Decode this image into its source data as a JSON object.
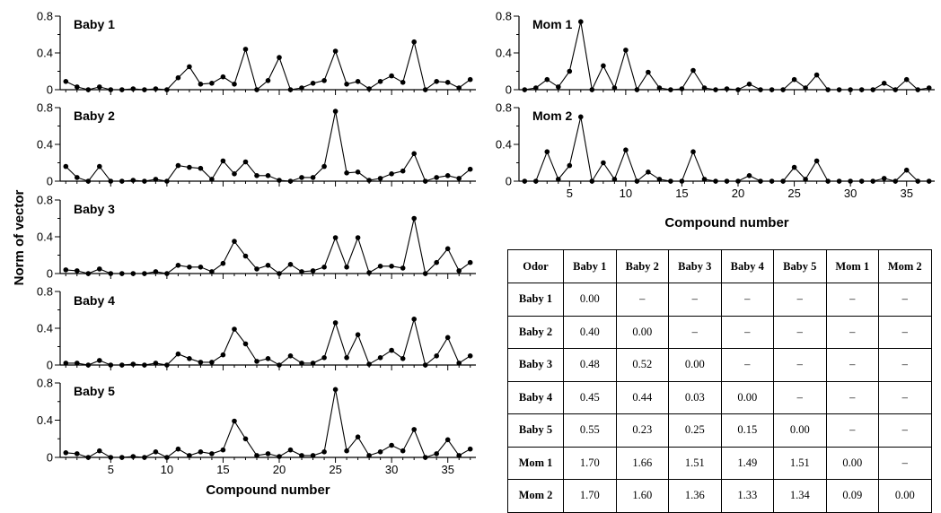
{
  "chart_data": [
    {
      "type": "line",
      "panel_label": "Baby 1",
      "ylim": [
        0,
        0.8
      ],
      "yticks": [
        "0",
        "0.4",
        "0.8"
      ],
      "x": [
        1,
        2,
        3,
        4,
        5,
        6,
        7,
        8,
        9,
        10,
        11,
        12,
        13,
        14,
        15,
        16,
        17,
        18,
        19,
        20,
        21,
        22,
        23,
        24,
        25,
        26,
        27,
        28,
        29,
        30,
        31,
        32,
        33,
        34,
        35,
        36,
        37
      ],
      "values": [
        0.09,
        0.03,
        0.0,
        0.03,
        0.0,
        0.0,
        0.01,
        0.0,
        0.01,
        0.0,
        0.13,
        0.25,
        0.06,
        0.07,
        0.14,
        0.06,
        0.44,
        0.0,
        0.1,
        0.35,
        0.0,
        0.02,
        0.07,
        0.1,
        0.42,
        0.06,
        0.09,
        0.01,
        0.09,
        0.15,
        0.08,
        0.52,
        0.0,
        0.09,
        0.08,
        0.02,
        0.11
      ]
    },
    {
      "type": "line",
      "panel_label": "Baby 2",
      "ylim": [
        0,
        0.8
      ],
      "yticks": [
        "0",
        "0.4",
        "0.8"
      ],
      "x": [
        1,
        2,
        3,
        4,
        5,
        6,
        7,
        8,
        9,
        10,
        11,
        12,
        13,
        14,
        15,
        16,
        17,
        18,
        19,
        20,
        21,
        22,
        23,
        24,
        25,
        26,
        27,
        28,
        29,
        30,
        31,
        32,
        33,
        34,
        35,
        36,
        37
      ],
      "values": [
        0.16,
        0.04,
        0.0,
        0.16,
        0.0,
        0.0,
        0.01,
        0.0,
        0.02,
        0.0,
        0.17,
        0.15,
        0.14,
        0.02,
        0.22,
        0.08,
        0.21,
        0.06,
        0.06,
        0.01,
        0.0,
        0.04,
        0.04,
        0.16,
        0.76,
        0.09,
        0.1,
        0.01,
        0.03,
        0.08,
        0.11,
        0.3,
        0.0,
        0.04,
        0.06,
        0.03,
        0.13
      ]
    },
    {
      "type": "line",
      "panel_label": "Baby 3",
      "ylim": [
        0,
        0.8
      ],
      "yticks": [
        "0",
        "0.4",
        "0.8"
      ],
      "x": [
        1,
        2,
        3,
        4,
        5,
        6,
        7,
        8,
        9,
        10,
        11,
        12,
        13,
        14,
        15,
        16,
        17,
        18,
        19,
        20,
        21,
        22,
        23,
        24,
        25,
        26,
        27,
        28,
        29,
        30,
        31,
        32,
        33,
        34,
        35,
        36,
        37
      ],
      "values": [
        0.04,
        0.03,
        0.0,
        0.05,
        0.0,
        0.0,
        0.0,
        0.0,
        0.02,
        0.0,
        0.09,
        0.07,
        0.07,
        0.02,
        0.11,
        0.35,
        0.19,
        0.05,
        0.09,
        0.0,
        0.1,
        0.02,
        0.03,
        0.07,
        0.39,
        0.07,
        0.39,
        0.01,
        0.08,
        0.08,
        0.06,
        0.6,
        0.0,
        0.12,
        0.27,
        0.03,
        0.12
      ]
    },
    {
      "type": "line",
      "panel_label": "Baby 4",
      "ylim": [
        0,
        0.8
      ],
      "yticks": [
        "0",
        "0.4",
        "0.8"
      ],
      "x": [
        1,
        2,
        3,
        4,
        5,
        6,
        7,
        8,
        9,
        10,
        11,
        12,
        13,
        14,
        15,
        16,
        17,
        18,
        19,
        20,
        21,
        22,
        23,
        24,
        25,
        26,
        27,
        28,
        29,
        30,
        31,
        32,
        33,
        34,
        35,
        36,
        37
      ],
      "values": [
        0.02,
        0.02,
        0.0,
        0.05,
        0.0,
        0.0,
        0.01,
        0.0,
        0.02,
        0.0,
        0.12,
        0.07,
        0.03,
        0.03,
        0.11,
        0.39,
        0.23,
        0.04,
        0.07,
        0.0,
        0.1,
        0.02,
        0.02,
        0.08,
        0.46,
        0.08,
        0.33,
        0.01,
        0.08,
        0.16,
        0.07,
        0.5,
        0.0,
        0.1,
        0.3,
        0.02,
        0.1
      ]
    },
    {
      "type": "line",
      "panel_label": "Baby 5",
      "ylim": [
        0,
        0.8
      ],
      "yticks": [
        "0",
        "0.4",
        "0.8"
      ],
      "xticks": [
        "5",
        "10",
        "15",
        "20",
        "25",
        "30",
        "35"
      ],
      "xlabel": "Compound  number",
      "x": [
        1,
        2,
        3,
        4,
        5,
        6,
        7,
        8,
        9,
        10,
        11,
        12,
        13,
        14,
        15,
        16,
        17,
        18,
        19,
        20,
        21,
        22,
        23,
        24,
        25,
        26,
        27,
        28,
        29,
        30,
        31,
        32,
        33,
        34,
        35,
        36,
        37
      ],
      "values": [
        0.05,
        0.04,
        0.0,
        0.07,
        0.0,
        0.0,
        0.01,
        0.0,
        0.06,
        0.0,
        0.09,
        0.02,
        0.06,
        0.04,
        0.08,
        0.39,
        0.2,
        0.02,
        0.04,
        0.01,
        0.08,
        0.02,
        0.02,
        0.06,
        0.73,
        0.07,
        0.22,
        0.02,
        0.06,
        0.13,
        0.07,
        0.3,
        0.0,
        0.04,
        0.19,
        0.02,
        0.09
      ]
    },
    {
      "type": "line",
      "panel_label": "Mom 1",
      "ylim": [
        0,
        0.8
      ],
      "yticks": [
        "0",
        "0.4",
        "0.8"
      ],
      "x": [
        1,
        2,
        3,
        4,
        5,
        6,
        7,
        8,
        9,
        10,
        11,
        12,
        13,
        14,
        15,
        16,
        17,
        18,
        19,
        20,
        21,
        22,
        23,
        24,
        25,
        26,
        27,
        28,
        29,
        30,
        31,
        32,
        33,
        34,
        35,
        36,
        37
      ],
      "values": [
        0.0,
        0.02,
        0.11,
        0.03,
        0.2,
        0.74,
        0.0,
        0.26,
        0.02,
        0.43,
        0.0,
        0.19,
        0.02,
        0.0,
        0.01,
        0.21,
        0.02,
        0.0,
        0.01,
        0.0,
        0.06,
        0.0,
        0.0,
        0.0,
        0.11,
        0.02,
        0.16,
        0.0,
        0.0,
        0.0,
        0.0,
        0.0,
        0.07,
        0.0,
        0.11,
        0.0,
        0.02
      ]
    },
    {
      "type": "line",
      "panel_label": "Mom 2",
      "ylim": [
        0,
        0.8
      ],
      "yticks": [
        "0",
        "0.4",
        "0.8"
      ],
      "xticks": [
        "5",
        "10",
        "15",
        "20",
        "25",
        "30",
        "35"
      ],
      "xlabel": "Compound  number",
      "x": [
        1,
        2,
        3,
        4,
        5,
        6,
        7,
        8,
        9,
        10,
        11,
        12,
        13,
        14,
        15,
        16,
        17,
        18,
        19,
        20,
        21,
        22,
        23,
        24,
        25,
        26,
        27,
        28,
        29,
        30,
        31,
        32,
        33,
        34,
        35,
        36,
        37
      ],
      "values": [
        0.0,
        0.0,
        0.32,
        0.02,
        0.17,
        0.7,
        0.0,
        0.2,
        0.02,
        0.34,
        0.0,
        0.1,
        0.02,
        0.0,
        0.0,
        0.32,
        0.02,
        0.0,
        0.0,
        0.0,
        0.06,
        0.0,
        0.0,
        0.0,
        0.15,
        0.02,
        0.22,
        0.0,
        0.0,
        0.0,
        0.0,
        0.0,
        0.03,
        0.0,
        0.12,
        0.0,
        0.0
      ]
    },
    {
      "type": "table",
      "columns": [
        "Odor",
        "Baby 1",
        "Baby 2",
        "Baby 3",
        "Baby 4",
        "Baby 5",
        "Mom 1",
        "Mom 2"
      ],
      "rows": [
        [
          "Baby 1",
          "0.00",
          "–",
          "–",
          "–",
          "–",
          "–",
          "–"
        ],
        [
          "Baby 2",
          "0.40",
          "0.00",
          "–",
          "–",
          "–",
          "–",
          "–"
        ],
        [
          "Baby 3",
          "0.48",
          "0.52",
          "0.00",
          "–",
          "–",
          "–",
          "–"
        ],
        [
          "Baby 4",
          "0.45",
          "0.44",
          "0.03",
          "0.00",
          "–",
          "–",
          "–"
        ],
        [
          "Baby 5",
          "0.55",
          "0.23",
          "0.25",
          "0.15",
          "0.00",
          "–",
          "–"
        ],
        [
          "Mom 1",
          "1.70",
          "1.66",
          "1.51",
          "1.49",
          "1.51",
          "0.00",
          "–"
        ],
        [
          "Mom 2",
          "1.70",
          "1.60",
          "1.36",
          "1.33",
          "1.34",
          "0.09",
          "0.00"
        ]
      ]
    }
  ],
  "shared_ylabel": "Norm of vector"
}
